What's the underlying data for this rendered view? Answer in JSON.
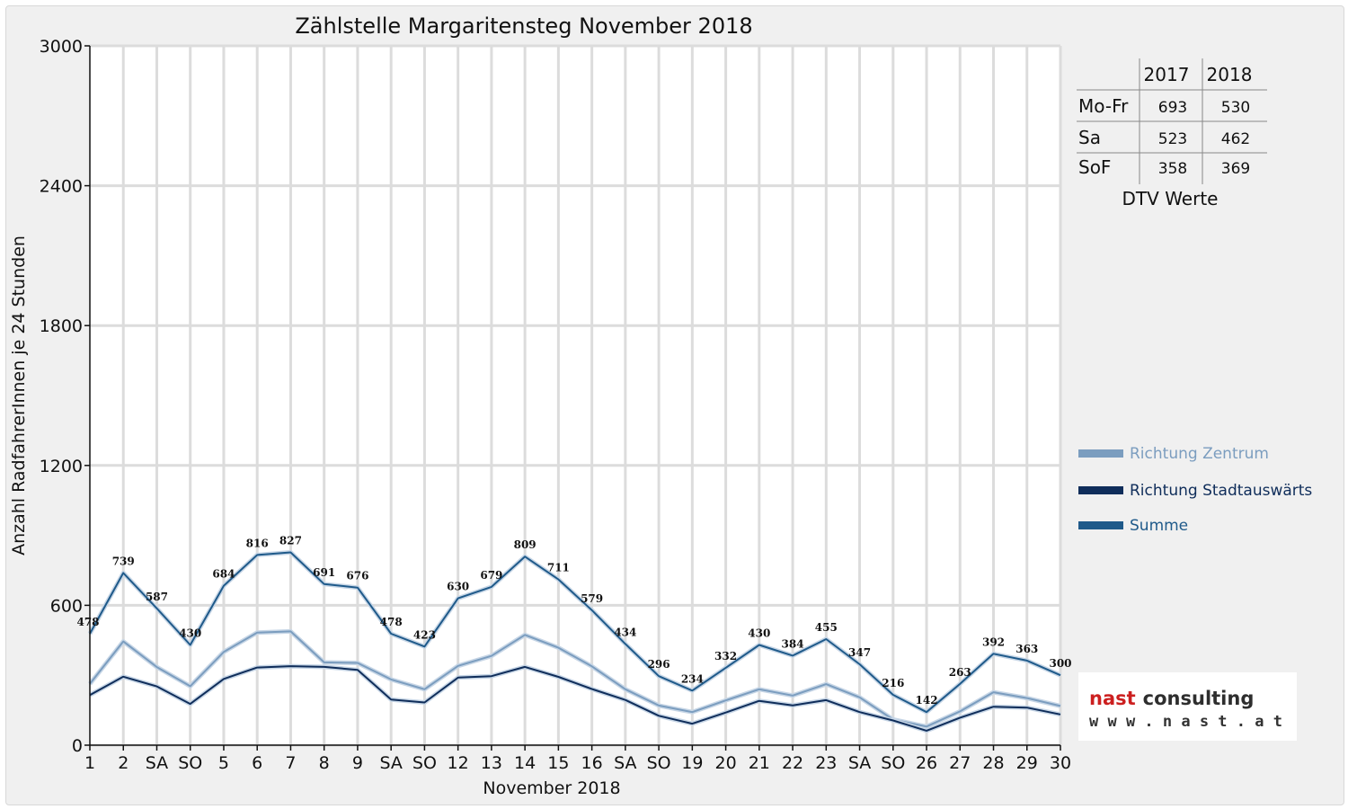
{
  "chart_data": {
    "type": "line",
    "title": "Zählstelle Margaritensteg November 2018",
    "xlabel": "November 2018",
    "ylabel": "Anzahl RadfahrerInnen je 24 Stunden",
    "ylim": [
      0,
      3000
    ],
    "yticks": [
      "0",
      "600",
      "1200",
      "1800",
      "2400",
      "3000"
    ],
    "grid": true,
    "legend_position": "right",
    "categories": [
      "1",
      "2",
      "SA",
      "SO",
      "5",
      "6",
      "7",
      "8",
      "9",
      "SA",
      "SO",
      "12",
      "13",
      "14",
      "15",
      "16",
      "SA",
      "SO",
      "19",
      "20",
      "21",
      "22",
      "23",
      "SA",
      "SO",
      "26",
      "27",
      "28",
      "29",
      "30"
    ],
    "red_categories": [
      0,
      3,
      10,
      17,
      24
    ],
    "series": [
      {
        "name": "Richtung Zentrum",
        "color": "#7b9dbf",
        "values": [
          263,
          445,
          335,
          253,
          400,
          483,
          488,
          355,
          353,
          282,
          240,
          340,
          383,
          473,
          418,
          338,
          240,
          170,
          142,
          192,
          240,
          213,
          262,
          205,
          110,
          80,
          145,
          227,
          202,
          168
        ]
      },
      {
        "name": "Richtung Stadtauswärts",
        "color": "#0f2d5a",
        "values": [
          215,
          294,
          252,
          177,
          284,
          333,
          339,
          336,
          323,
          196,
          183,
          290,
          296,
          336,
          293,
          241,
          194,
          126,
          92,
          140,
          190,
          171,
          193,
          142,
          106,
          62,
          118,
          165,
          161,
          132
        ]
      },
      {
        "name": "Summe",
        "color": "#1f5a8a",
        "values": [
          478,
          739,
          587,
          430,
          684,
          816,
          827,
          691,
          676,
          478,
          423,
          630,
          679,
          809,
          711,
          579,
          434,
          296,
          234,
          332,
          430,
          384,
          455,
          347,
          216,
          142,
          263,
          392,
          363,
          300
        ]
      }
    ],
    "data_labels": [
      "478",
      "739",
      "587",
      "430",
      "684",
      "816",
      "827",
      "691",
      "676",
      "478",
      "423",
      "630",
      "679",
      "809",
      "711",
      "579",
      "434",
      "296",
      "234",
      "332",
      "430",
      "384",
      "455",
      "347",
      "216",
      "142",
      "263",
      "392",
      "363",
      "300"
    ]
  },
  "dtv_table": {
    "caption": "DTV Werte",
    "headers": [
      "",
      "2017",
      "2018"
    ],
    "rows": [
      {
        "label": "Mo-Fr",
        "v2017": "693",
        "v2018": "530"
      },
      {
        "label": "Sa",
        "v2017": "523",
        "v2018": "462"
      },
      {
        "label": "SoF",
        "v2017": "358",
        "v2018": "369"
      }
    ]
  },
  "logo": {
    "name_part1": "nast",
    "name_part2": "consulting",
    "url": "w w w . n a s t . a t"
  }
}
